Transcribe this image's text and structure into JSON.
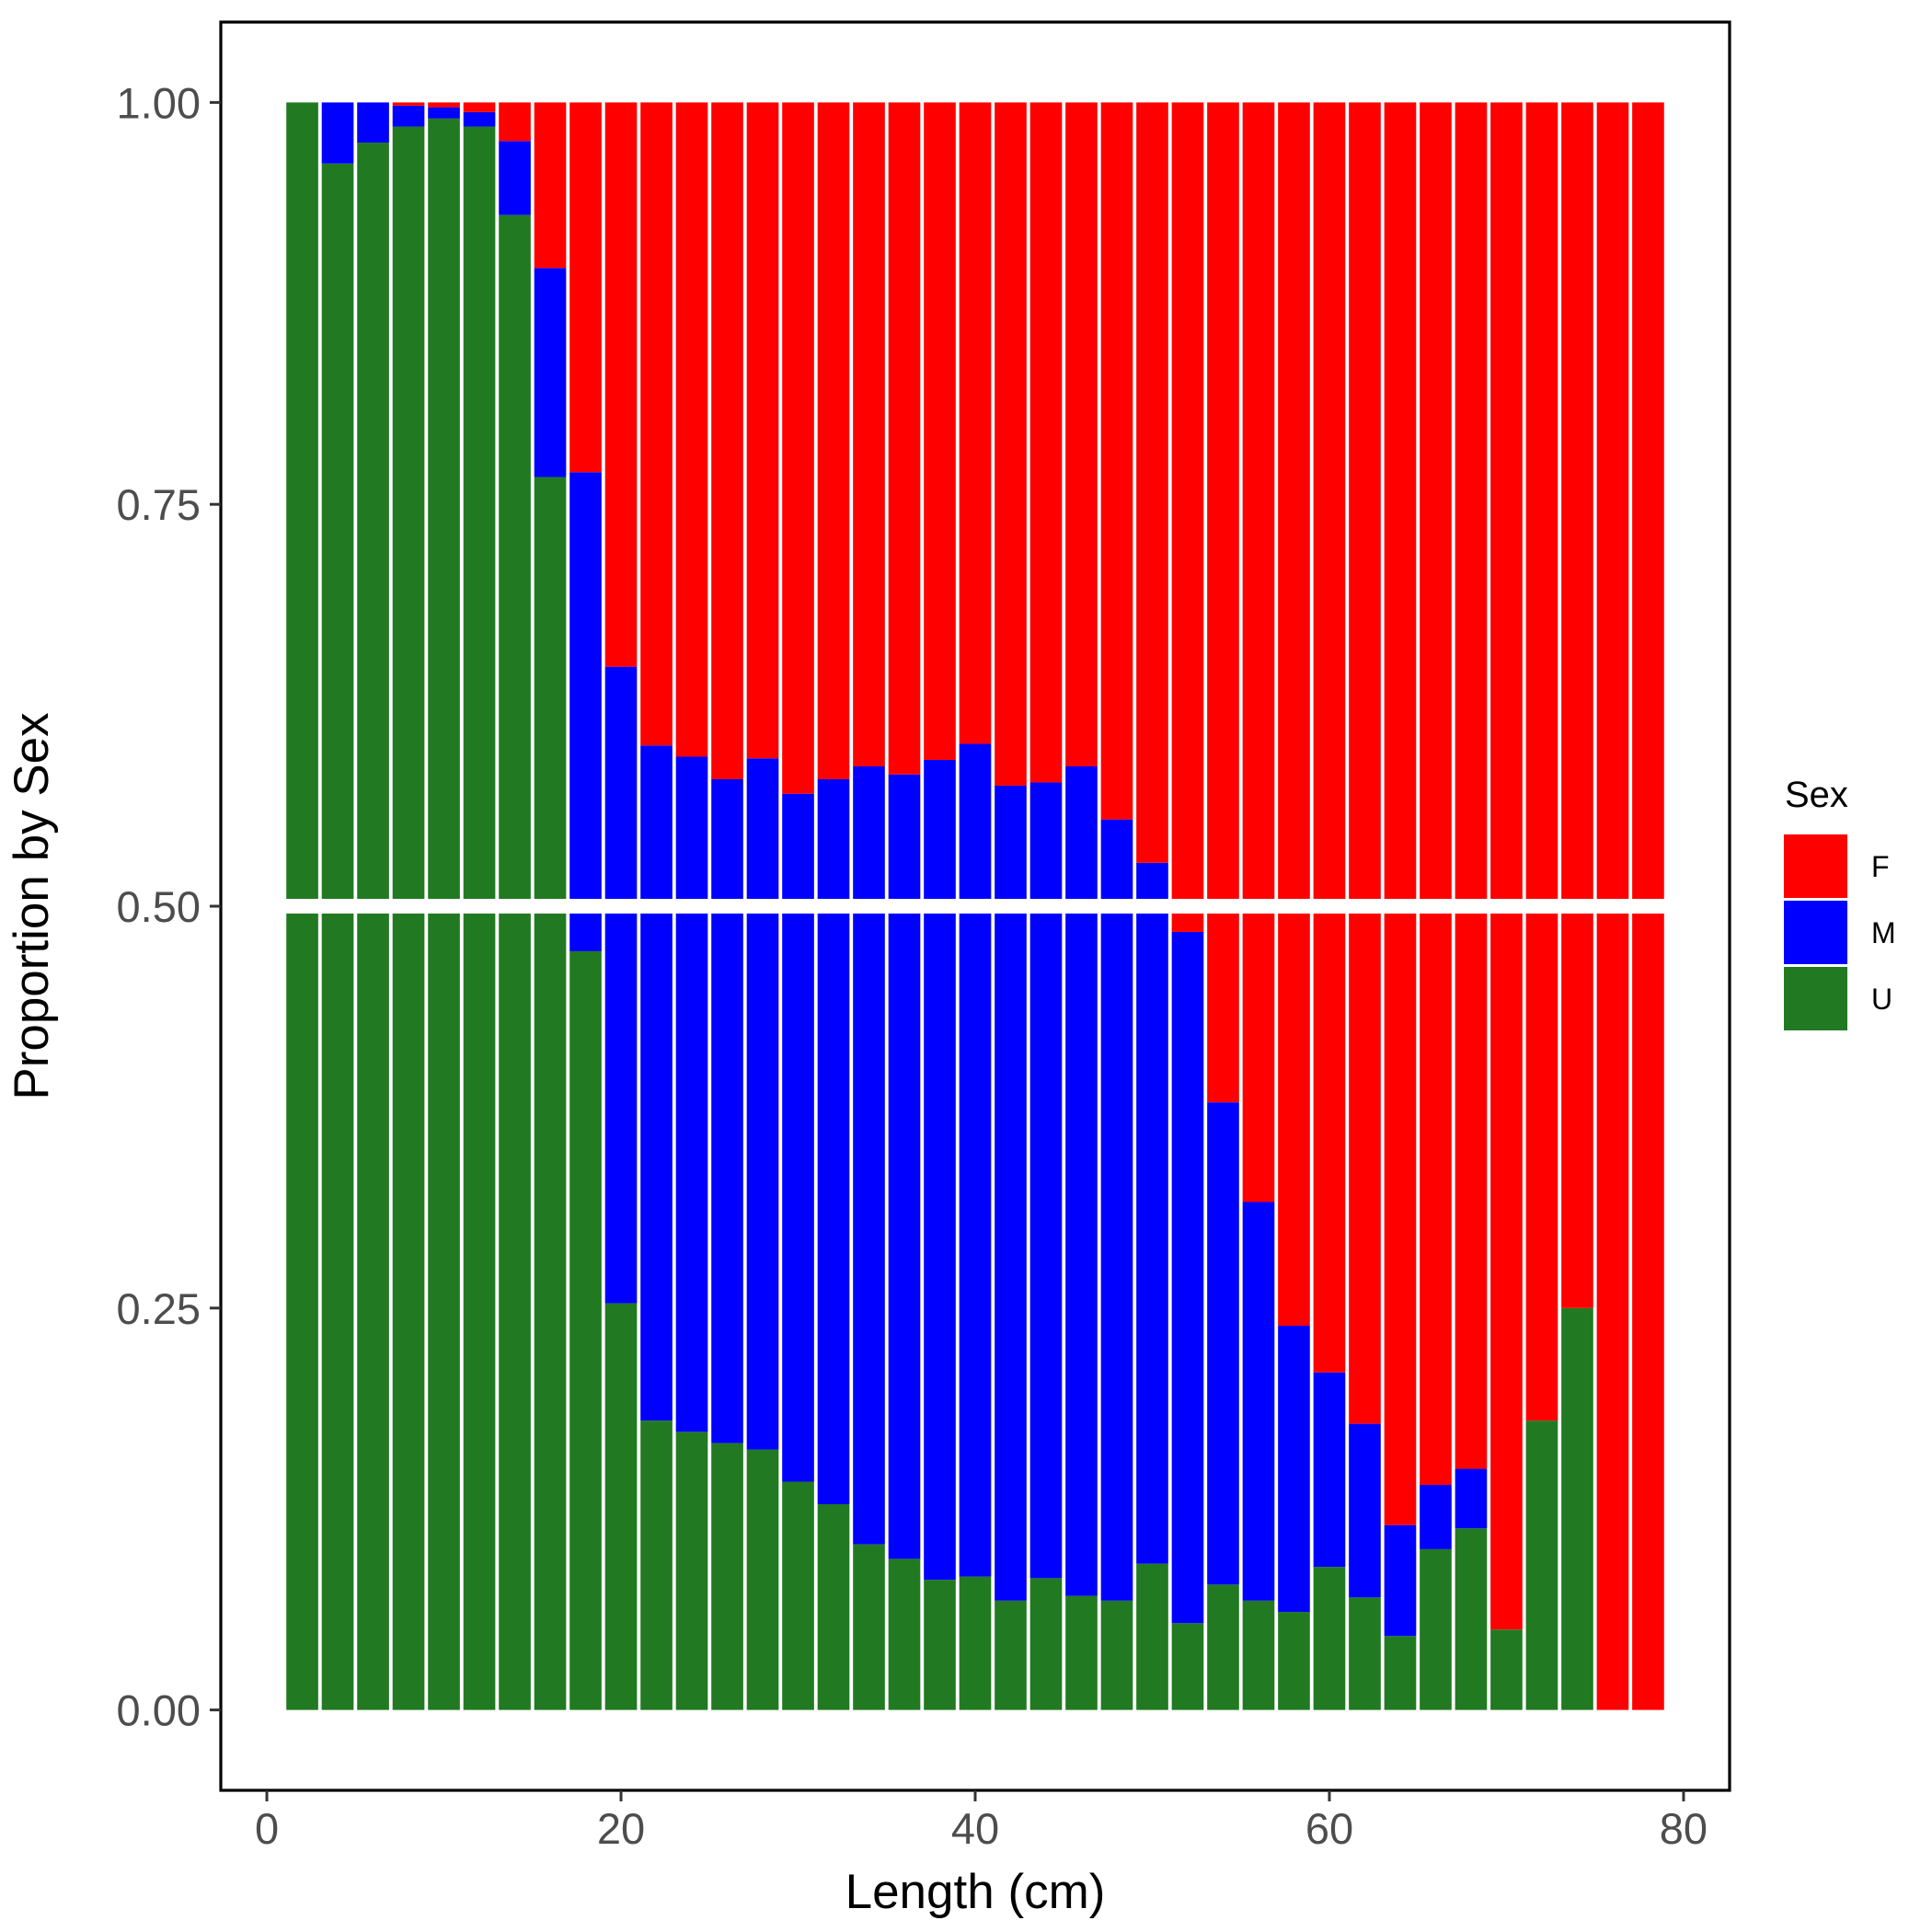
{
  "chart_data": {
    "type": "bar",
    "stacked": true,
    "xlabel": "Length (cm)",
    "ylabel": "Proportion by Sex",
    "xlim": [
      -2.6,
      82.6
    ],
    "ylim": [
      -0.05,
      1.05
    ],
    "x_ticks": [
      0,
      20,
      40,
      60,
      80
    ],
    "x_tick_labels": [
      "0",
      "20",
      "40",
      "60",
      "80"
    ],
    "y_ticks": [
      0,
      0.25,
      0.5,
      0.75,
      1.0
    ],
    "y_tick_labels": [
      "0.00",
      "0.25",
      "0.50",
      "0.75",
      "1.00"
    ],
    "grid": false,
    "hline_at": 0.5,
    "legend": {
      "title": "Sex",
      "position": "right",
      "entries": [
        {
          "label": "F",
          "color": "#FF0000"
        },
        {
          "label": "M",
          "color": "#0000FF"
        },
        {
          "label": "U",
          "color": "#217A21"
        }
      ]
    },
    "x": [
      2,
      4,
      6,
      8,
      10,
      12,
      14,
      16,
      18,
      20,
      22,
      24,
      26,
      28,
      30,
      32,
      34,
      36,
      38,
      40,
      42,
      44,
      46,
      48,
      50,
      52,
      54,
      56,
      58,
      60,
      62,
      64,
      66,
      68,
      70,
      72,
      74,
      76,
      78
    ],
    "series": [
      {
        "name": "U",
        "color": "#217A21",
        "values": [
          1.0,
          0.962,
          0.975,
          0.985,
          0.99,
          0.985,
          0.93,
          0.767,
          0.472,
          0.253,
          0.18,
          0.173,
          0.166,
          0.162,
          0.142,
          0.128,
          0.103,
          0.094,
          0.081,
          0.083,
          0.068,
          0.082,
          0.071,
          0.068,
          0.091,
          0.054,
          0.078,
          0.068,
          0.061,
          0.089,
          0.07,
          0.046,
          0.1,
          0.113,
          0.05,
          0.18,
          0.25,
          0.0,
          0.0
        ]
      },
      {
        "name": "M",
        "color": "#0000FF",
        "values": [
          0.0,
          0.038,
          0.025,
          0.013,
          0.007,
          0.009,
          0.046,
          0.13,
          0.298,
          0.396,
          0.42,
          0.42,
          0.413,
          0.43,
          0.428,
          0.451,
          0.484,
          0.488,
          0.51,
          0.518,
          0.507,
          0.495,
          0.516,
          0.486,
          0.436,
          0.43,
          0.3,
          0.248,
          0.178,
          0.121,
          0.108,
          0.069,
          0.04,
          0.037,
          0.0,
          0.0,
          0.0,
          0.0,
          0.0
        ]
      },
      {
        "name": "F",
        "color": "#FF0000",
        "values": [
          0.0,
          0.0,
          0.0,
          0.002,
          0.003,
          0.006,
          0.024,
          0.103,
          0.23,
          0.351,
          0.4,
          0.407,
          0.421,
          0.408,
          0.43,
          0.421,
          0.413,
          0.418,
          0.409,
          0.399,
          0.425,
          0.423,
          0.413,
          0.446,
          0.473,
          0.516,
          0.622,
          0.684,
          0.761,
          0.79,
          0.822,
          0.885,
          0.86,
          0.85,
          0.95,
          0.82,
          0.75,
          1.0,
          1.0
        ]
      }
    ]
  }
}
